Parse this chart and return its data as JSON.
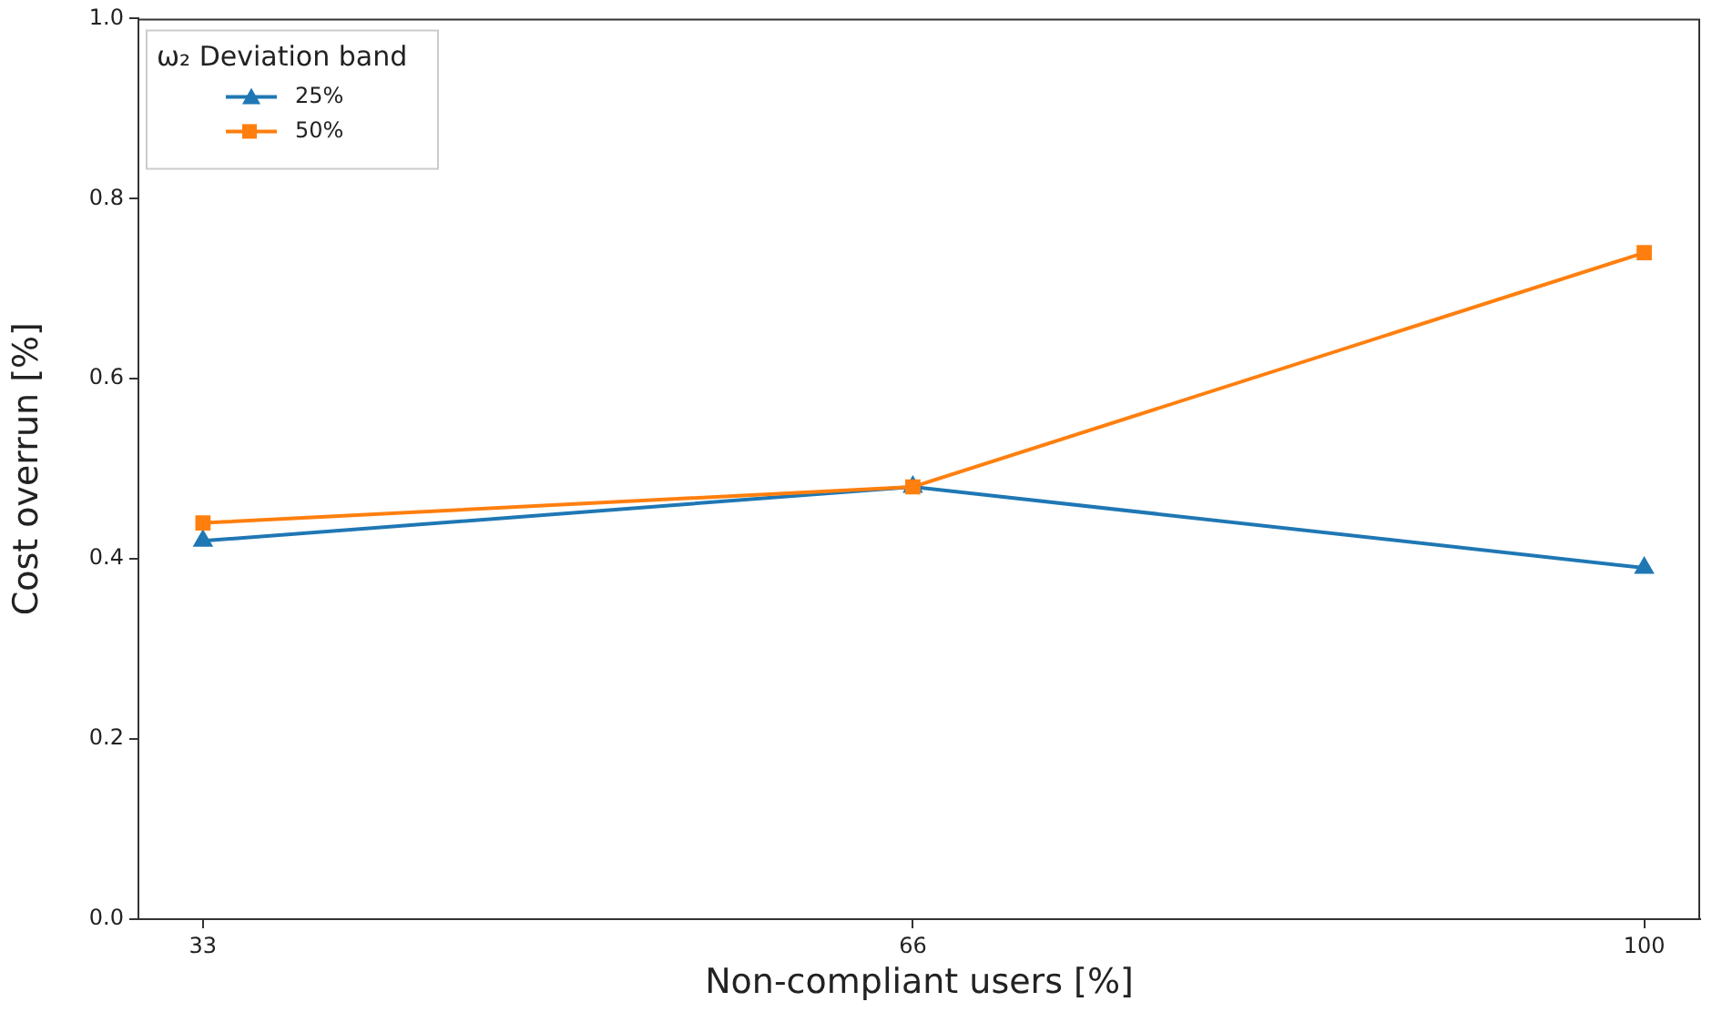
{
  "chart_data": {
    "type": "line",
    "xlabel": "Non-compliant users [%]",
    "ylabel": "Cost overrun [%]",
    "legend_title": "ω₂ Deviation band",
    "legend": "top left",
    "grid": false,
    "line_style": "solid",
    "x": [
      33,
      66,
      100
    ],
    "xlim": [
      30,
      102.6
    ],
    "xticks": [
      33,
      66,
      100
    ],
    "ylim": [
      0,
      1
    ],
    "yticks": [
      {
        "value": 0,
        "label": "0.0"
      },
      {
        "value": 0.2,
        "label": "0.2"
      },
      {
        "value": 0.4,
        "label": "0.4"
      },
      {
        "value": 0.6,
        "label": "0.6"
      },
      {
        "value": 0.8,
        "label": "0.8"
      },
      {
        "value": 1,
        "label": "1.0"
      }
    ],
    "series": [
      {
        "name": "25%",
        "color": "#1f77b4",
        "marker": "triangle",
        "values": [
          0.42,
          0.48,
          0.39
        ]
      },
      {
        "name": "50%",
        "color": "#ff7f0e",
        "marker": "square",
        "values": [
          0.44,
          0.48,
          0.74
        ]
      }
    ]
  }
}
